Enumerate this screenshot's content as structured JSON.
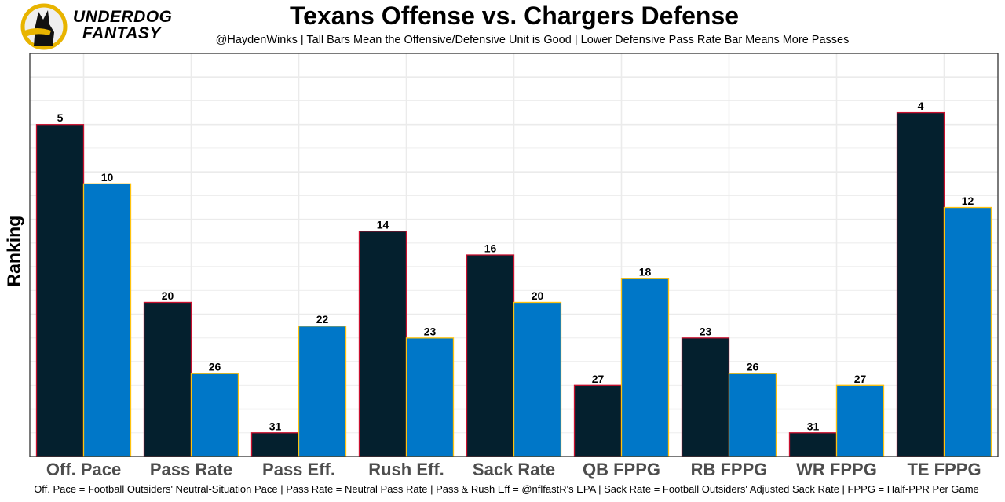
{
  "branding": {
    "logo_line1": "UNDERDOG",
    "logo_line2": "FANTASY",
    "logo_icon": "dog-head-icon"
  },
  "colors": {
    "offense_fill": "#04202E",
    "offense_border": "#C8102E",
    "defense_fill": "#0077C8",
    "defense_border": "#FFC20E",
    "logo_ring": "#E8B400",
    "grid": "#EBEBEB",
    "tick_label": "#4D4D4D"
  },
  "chart_data": {
    "type": "bar",
    "title": "Texans Offense vs. Chargers Defense",
    "subtitle": "@HaydenWinks | Tall Bars Mean the Offensive/Defensive Unit is Good | Lower Defensive Pass Rate Bar Means More Passes",
    "xlabel": "",
    "ylabel": "Ranking",
    "caption": "Off. Pace = Football Outsiders' Neutral-Situation Pace | Pass Rate = Neutral Pass Rate | Pass & Rush Eff = @nflfastR's EPA | Sack Rate = Football Outsiders' Adjusted Sack Rate | FPPG = Half-PPR Per Game",
    "categories": [
      "Off. Pace",
      "Pass Rate",
      "Pass Eff.",
      "Rush Eff.",
      "Sack Rate",
      "QB FPPG",
      "RB FPPG",
      "WR FPPG",
      "TE FPPG"
    ],
    "series": [
      {
        "name": "Texans Offense",
        "values": [
          5,
          20,
          31,
          14,
          16,
          27,
          23,
          31,
          4
        ]
      },
      {
        "name": "Chargers Defense",
        "values": [
          10,
          26,
          22,
          23,
          20,
          18,
          26,
          27,
          12
        ]
      }
    ],
    "bar_height_rule": "height = 33 - ranking",
    "ylim": [
      0,
      34
    ],
    "y_ticks_shown": false,
    "grid": true,
    "legend": "none"
  }
}
